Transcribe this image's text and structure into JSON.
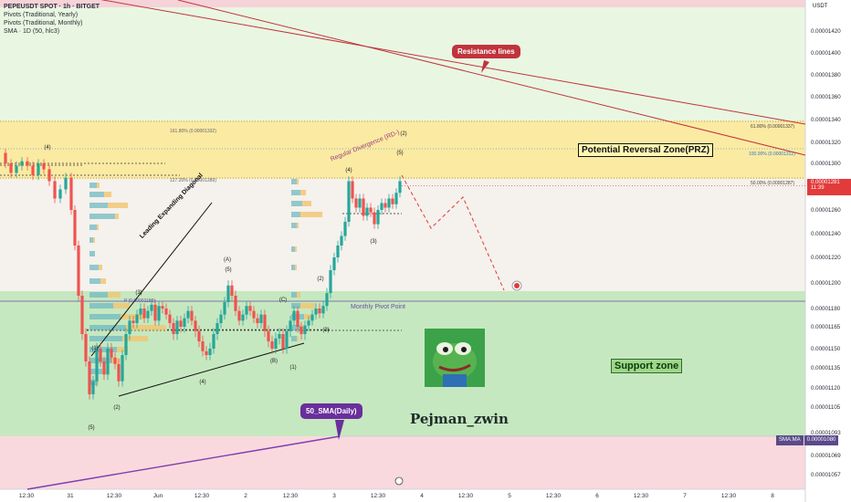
{
  "header": {
    "title": "PEPEUSDT SPOT · 1h · BITGET",
    "line2": "Pivots (Traditional, Yearly)",
    "line3": "Pivots (Traditional, Monthly)",
    "line4": "SMA · 1D (50, hlc3)"
  },
  "axis": {
    "currency": "USDT",
    "price_label": "0.00001281",
    "countdown": "11:39",
    "sma_tag": "SMA:MA",
    "sma_value": "0.00001080"
  },
  "annotations": {
    "resistance": "Resistance lines",
    "prz": "Potential Reversal Zone(PRZ)",
    "support": "Support zone",
    "sma50": "50_SMA(Daily)",
    "monthly_pivot": "Monthly Pivot Point",
    "leading_diag": "Leading Expanding Diagonal",
    "divergence": "Regular Divergence (RD-)",
    "author": "Pejman_zwin",
    "fib_1618": "161.80% (0.00001332)",
    "fib_1272": "127.20% (0.00001289)",
    "fib_618": "61.80% (0.00001337)",
    "fib_100": "100.00% (0.00001312)",
    "fib_50": "50.00% (0.00001287)",
    "pivot_label": "P (0.00001185)"
  },
  "colors": {
    "bull": "#26a69a",
    "bear": "#ef5350",
    "prz_fill": "#fbeaa2",
    "support_fill": "#c6e8c0",
    "upper_fill": "#e9f7e2",
    "lower_fill": "#f9d9de",
    "resistance": "#c0343c",
    "sma": "#7e3fb0"
  },
  "chart_data": {
    "type": "candlestick",
    "symbol": "PEPEUSDT",
    "timeframe": "1h",
    "y_tick_labels": [
      "0.00001420",
      "0.00001400",
      "0.00001380",
      "0.00001360",
      "0.00001340",
      "0.00001320",
      "0.00001300",
      "0.00001260",
      "0.00001240",
      "0.00001220",
      "0.00001200",
      "0.00001180",
      "0.00001165",
      "0.00001150",
      "0.00001135",
      "0.00001120",
      "0.00001105",
      "0.00001093",
      "0.00001069",
      "0.00001057"
    ],
    "x_tick_labels": [
      "12:30",
      "31",
      "12:30",
      "Jun",
      "12:30",
      "2",
      "12:30",
      "3",
      "12:30",
      "4",
      "12:30",
      "5",
      "12:30",
      "6",
      "12:30",
      "7",
      "12:30",
      "8"
    ],
    "zones": {
      "prz": [
        1.29e-05,
        1.332e-05
      ],
      "support": [
        1.08e-05,
        1.193e-05
      ]
    },
    "wave_labels": [
      "(4)",
      "(5)",
      "(1)",
      "(2)",
      "(3)",
      "(4)",
      "(5)",
      "(A)",
      "(B)",
      "(C)",
      "(1)",
      "(2)",
      "(3)",
      "(4)",
      "(5)",
      "(3)",
      "(2)",
      "(4)"
    ],
    "last_price": 1.281e-05,
    "projection": [
      1.295e-05,
      1.245e-05,
      1.275e-05,
      1.2e-05
    ],
    "target": 1.197e-05
  }
}
